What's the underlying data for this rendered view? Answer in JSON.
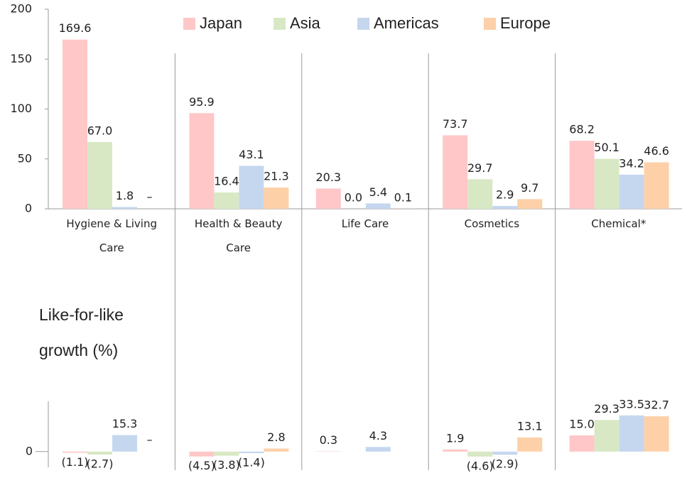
{
  "chart_data": [
    {
      "type": "bar",
      "categories": [
        "Hygiene & Living Care",
        "Health & Beauty Care",
        "Life Care",
        "Cosmetics",
        "Chemical*"
      ],
      "series": [
        {
          "name": "Japan",
          "color": "#ffc7c7",
          "values": [
            169.6,
            95.9,
            20.3,
            73.7,
            68.2
          ],
          "value_labels": [
            "169.6",
            "95.9",
            "20.3",
            "73.7",
            "68.2"
          ]
        },
        {
          "name": "Asia",
          "color": "#d9e8c4",
          "values": [
            67.0,
            16.4,
            0.0,
            29.7,
            50.1
          ],
          "value_labels": [
            "67.0",
            "16.4",
            "0.0",
            "29.7",
            "50.1"
          ]
        },
        {
          "name": "Americas",
          "color": "#c5d7ef",
          "values": [
            1.8,
            43.1,
            5.4,
            2.9,
            34.2
          ],
          "value_labels": [
            "1.8",
            "43.1",
            "5.4",
            "2.9",
            "34.2"
          ]
        },
        {
          "name": "Europe",
          "color": "#fdd0a8",
          "values": [
            null,
            21.3,
            0.1,
            9.7,
            46.6
          ],
          "value_labels": [
            "–",
            "21.3",
            "0.1",
            "9.7",
            "46.6"
          ]
        }
      ],
      "ylim": [
        0,
        200
      ],
      "yticks": [
        0,
        50,
        100,
        150,
        200
      ],
      "legend": "top"
    },
    {
      "type": "bar",
      "title": "Like-for-like growth (%)",
      "series": [
        {
          "color": "#ffc7c7",
          "values": [
            -1.1,
            -4.5,
            0.3,
            1.9,
            15.0
          ],
          "value_labels": [
            "(1.1)",
            "(4.5)",
            "0.3",
            "1.9",
            "15.0"
          ]
        },
        {
          "color": "#d9e8c4",
          "values": [
            -2.7,
            -3.8,
            null,
            -4.6,
            29.3
          ],
          "value_labels": [
            "(2.7)",
            "(3.8)",
            null,
            "(4.6)",
            "29.3"
          ]
        },
        {
          "color": "#c5d7ef",
          "values": [
            15.3,
            -1.4,
            4.3,
            -2.9,
            33.5
          ],
          "value_labels": [
            "15.3",
            "(1.4)",
            "4.3",
            "(2.9)",
            "33.5"
          ]
        },
        {
          "color": "#fdd0a8",
          "values": [
            null,
            2.8,
            null,
            13.1,
            32.7
          ],
          "value_labels": [
            "–",
            "2.8",
            null,
            "13.1",
            "32.7"
          ]
        }
      ],
      "ylim": [
        -10,
        40
      ],
      "yticks": [
        0
      ]
    }
  ]
}
